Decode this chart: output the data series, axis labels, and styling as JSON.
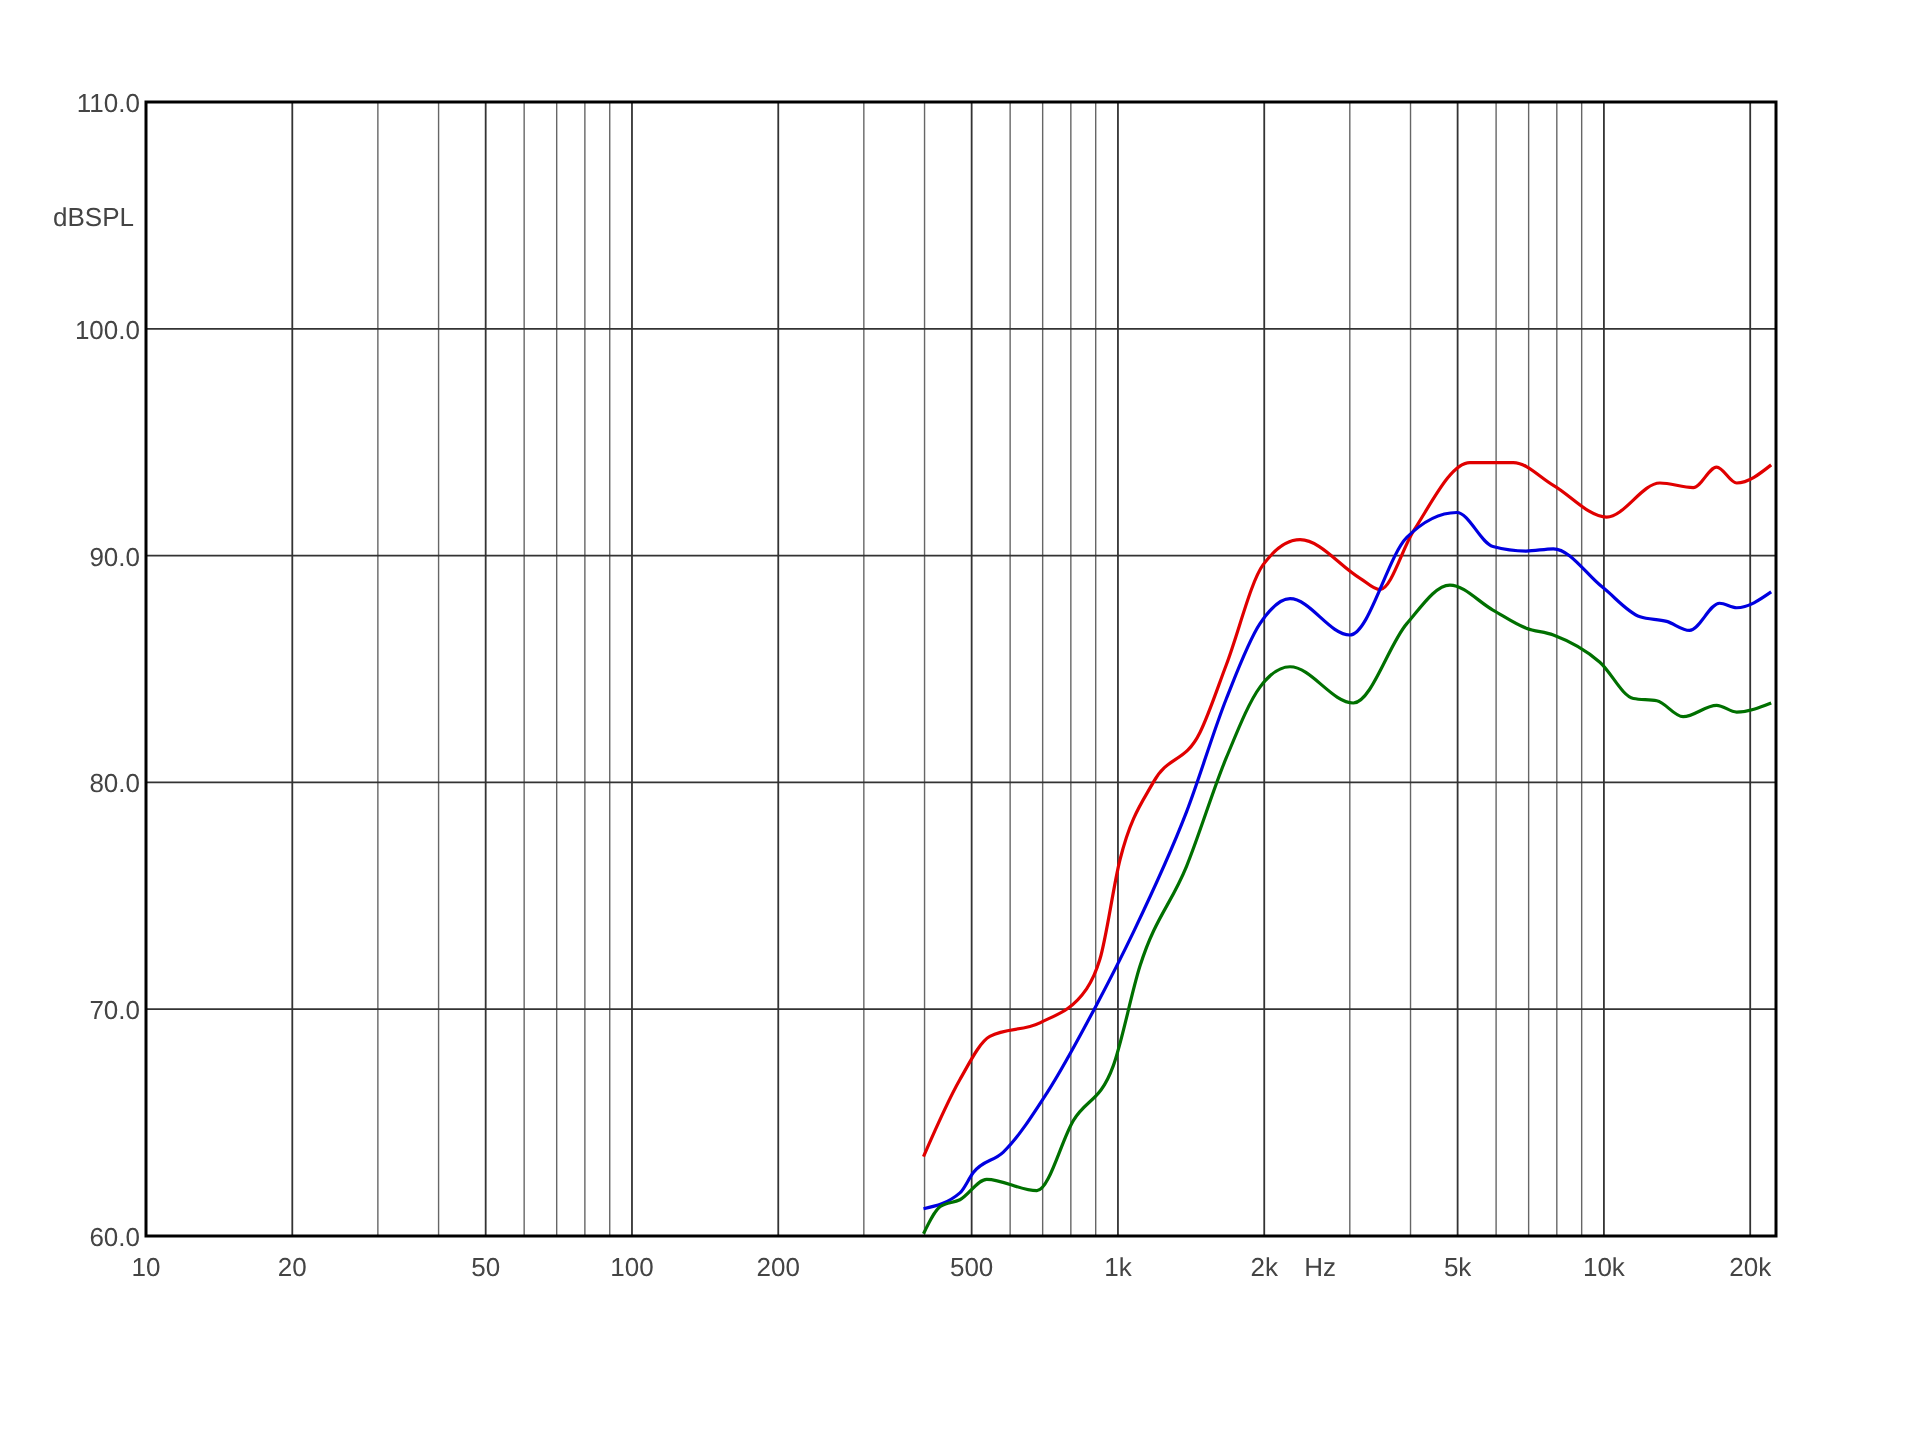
{
  "chart_data": {
    "type": "line",
    "ylabel": "dBSPL",
    "xlabel": "Hz",
    "log": "x",
    "grid": true,
    "line_style": "solid",
    "xlim": [
      10,
      22600
    ],
    "ylim": [
      60,
      110
    ],
    "xticks": [
      10,
      20,
      {
        "value": 30,
        "label": null
      },
      {
        "value": 40,
        "label": null
      },
      50,
      {
        "value": 60,
        "label": null
      },
      {
        "value": 70,
        "label": null
      },
      {
        "value": 80,
        "label": null
      },
      {
        "value": 90,
        "label": null
      },
      100,
      200,
      {
        "value": 300,
        "label": null
      },
      {
        "value": 400,
        "label": null
      },
      500,
      {
        "value": 600,
        "label": null
      },
      {
        "value": 700,
        "label": null
      },
      {
        "value": 800,
        "label": null
      },
      {
        "value": 900,
        "label": null
      },
      {
        "value": 1000,
        "label": "1k"
      },
      {
        "value": 2000,
        "label": "2k"
      },
      {
        "value": 3000,
        "label": null
      },
      {
        "value": 4000,
        "label": null
      },
      {
        "value": 5000,
        "label": "5k"
      },
      {
        "value": 6000,
        "label": null
      },
      {
        "value": 7000,
        "label": null
      },
      {
        "value": 8000,
        "label": null
      },
      {
        "value": 9000,
        "label": null
      },
      {
        "value": 10000,
        "label": "10k"
      },
      {
        "value": 20000,
        "label": "20k"
      }
    ],
    "yticks": [
      {
        "value": 60,
        "label": "60.0"
      },
      {
        "value": 70,
        "label": "70.0"
      },
      {
        "value": 80,
        "label": "80.0"
      },
      {
        "value": 90,
        "label": "90.0"
      },
      {
        "value": 100,
        "label": "100.0"
      },
      {
        "value": 110,
        "label": "110.0"
      }
    ],
    "series": [
      {
        "color": "#e00000",
        "x": [
          398,
          473,
          545,
          691,
          862,
          918,
          1010,
          1182,
          1475,
          1672,
          1990,
          2370,
          3150,
          3460,
          4060,
          5300,
          6510,
          7870,
          10130,
          13040,
          15270,
          17060,
          18760,
          22090
        ],
        "values": [
          63.5,
          66.9,
          68.8,
          69.4,
          70.9,
          72.2,
          76.6,
          80.0,
          82.2,
          85.2,
          89.6,
          90.7,
          89.0,
          88.5,
          91.1,
          94.1,
          94.1,
          93.1,
          91.7,
          93.2,
          93.0,
          93.9,
          93.2,
          94.0
        ]
      },
      {
        "color": "#0000e0",
        "x": [
          398,
          473,
          504,
          581,
          714,
          904,
          1076,
          1384,
          1672,
          1960,
          2260,
          3000,
          3930,
          4980,
          5910,
          6920,
          7870,
          9940,
          11870,
          13460,
          15000,
          17300,
          18760,
          22090
        ],
        "values": [
          61.2,
          61.9,
          62.8,
          63.7,
          66.3,
          70.2,
          73.4,
          78.7,
          83.7,
          87.0,
          88.1,
          86.5,
          90.8,
          91.9,
          90.4,
          90.2,
          90.3,
          88.6,
          87.3,
          87.1,
          86.7,
          87.9,
          87.7,
          88.4
        ]
      },
      {
        "color": "#007000",
        "x": [
          398,
          431,
          473,
          537,
          681,
          810,
          978,
          1110,
          1384,
          1672,
          1960,
          2260,
          3050,
          3930,
          4820,
          5910,
          6920,
          7870,
          9810,
          11500,
          12850,
          14550,
          17060,
          18760,
          22090
        ],
        "values": [
          60.1,
          61.3,
          61.6,
          62.5,
          62.0,
          65.1,
          67.5,
          71.9,
          76.3,
          81.1,
          84.2,
          85.1,
          83.5,
          87.0,
          88.7,
          87.6,
          86.8,
          86.5,
          85.3,
          83.7,
          83.6,
          82.9,
          83.4,
          83.1,
          83.5
        ]
      }
    ]
  }
}
